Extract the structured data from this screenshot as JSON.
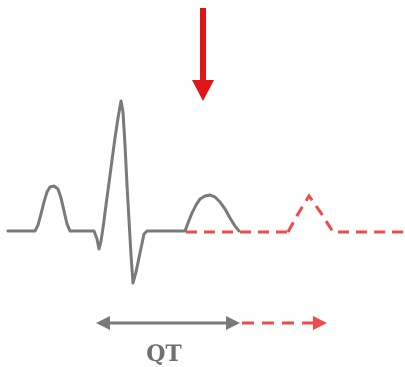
{
  "diagram": {
    "qt_label": "QT",
    "colors": {
      "trace": "#7a7a7a",
      "prolonged": "#f04a4a",
      "arrow": "#e01515",
      "label": "#707070"
    },
    "icons": {
      "pointer": "down-arrow-icon",
      "interval": "double-headed-arrow-icon"
    }
  }
}
